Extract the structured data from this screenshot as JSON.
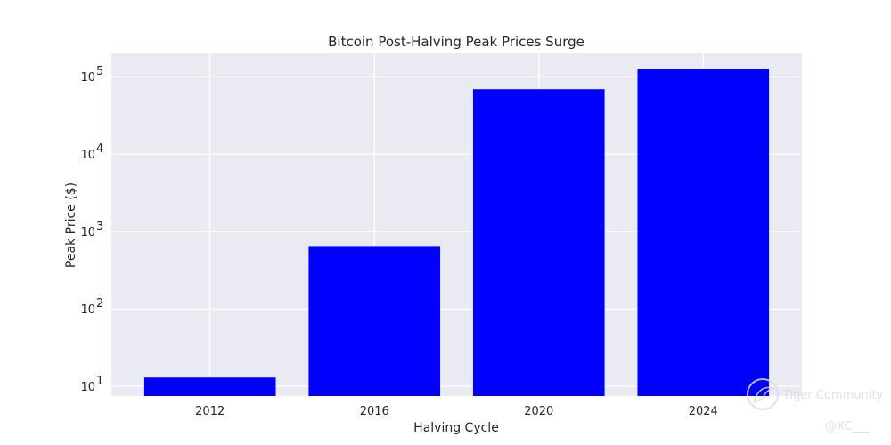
{
  "chart_data": {
    "type": "bar",
    "title": "Bitcoin Post-Halving Peak Prices Surge",
    "xlabel": "Halving Cycle",
    "ylabel": "Peak Price ($)",
    "categories": [
      "2012",
      "2016",
      "2020",
      "2024"
    ],
    "values": [
      13,
      650,
      69000,
      126000
    ],
    "yscale": "log",
    "ylim": [
      7.5,
      200000
    ],
    "yticks": [
      10,
      100,
      1000,
      10000,
      100000
    ],
    "ytick_labels": [
      {
        "base": "10",
        "exp": "1"
      },
      {
        "base": "10",
        "exp": "2"
      },
      {
        "base": "10",
        "exp": "3"
      },
      {
        "base": "10",
        "exp": "4"
      },
      {
        "base": "10",
        "exp": "5"
      }
    ],
    "grid": true,
    "colors": {
      "bar": "#0000ff",
      "plot_bg": "#eaeaf2",
      "grid": "#ffffff"
    }
  },
  "watermark": {
    "brand": "Tiger Community",
    "handle": "@XC___"
  }
}
